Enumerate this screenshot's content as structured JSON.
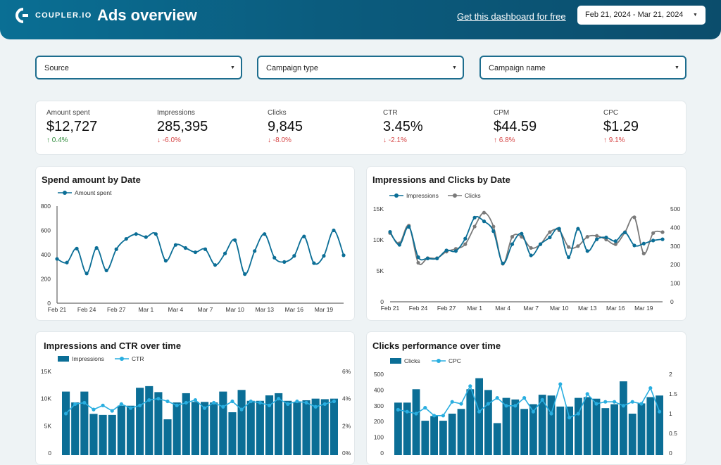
{
  "header": {
    "logo_text": "COUPLER.IO",
    "title": "Ads overview",
    "link_text": "Get this dashboard for free",
    "date_range": "Feb 21, 2024 - Mar 21, 2024"
  },
  "filters": [
    {
      "label": "Source"
    },
    {
      "label": "Campaign type"
    },
    {
      "label": "Campaign name"
    }
  ],
  "kpis": [
    {
      "label": "Amount spent",
      "value": "$12,727",
      "delta": "0.4%",
      "direction": "up",
      "color": "#2e8b3a"
    },
    {
      "label": "Impressions",
      "value": "285,395",
      "delta": "-6.0%",
      "direction": "down",
      "color": "#d64545"
    },
    {
      "label": "Clicks",
      "value": "9,845",
      "delta": "-8.0%",
      "direction": "down",
      "color": "#d64545"
    },
    {
      "label": "CTR",
      "value": "3.45%",
      "delta": "-2.1%",
      "direction": "down",
      "color": "#d64545"
    },
    {
      "label": "CPM",
      "value": "$44.59",
      "delta": "6.8%",
      "direction": "up",
      "color": "#d64545"
    },
    {
      "label": "CPC",
      "value": "$1.29",
      "delta": "9.1%",
      "direction": "up",
      "color": "#d64545"
    }
  ],
  "colors": {
    "primary": "#0b6e96",
    "secondary": "#7a7a7a",
    "light": "#29aee0"
  },
  "chart_data": [
    {
      "id": "spend",
      "type": "line",
      "title": "Spend amount by Date",
      "legend": [
        "Amount spent"
      ],
      "xticks": [
        "Feb 21",
        "Feb 24",
        "Feb 27",
        "Mar 1",
        "Mar 4",
        "Mar 7",
        "Mar 10",
        "Mar 13",
        "Mar 16",
        "Mar 19"
      ],
      "yticks": [
        "0",
        "200",
        "400",
        "600",
        "800"
      ],
      "ylim": [
        0,
        800
      ],
      "values": [
        365,
        335,
        450,
        245,
        455,
        270,
        445,
        530,
        570,
        545,
        570,
        350,
        480,
        455,
        420,
        445,
        315,
        410,
        520,
        240,
        430,
        570,
        375,
        340,
        390,
        550,
        330,
        390,
        600,
        395
      ]
    },
    {
      "id": "impclicks",
      "type": "line",
      "title": "Impressions and Clicks by Date",
      "legend": [
        "Impressions",
        "Clicks"
      ],
      "xticks": [
        "Feb 21",
        "Feb 24",
        "Feb 27",
        "Mar 1",
        "Mar 4",
        "Mar 7",
        "Mar 10",
        "Mar 13",
        "Mar 16",
        "Mar 19"
      ],
      "yticks_left": [
        "0",
        "5K",
        "10K",
        "15K"
      ],
      "yticks_right": [
        "0",
        "100",
        "200",
        "300",
        "400",
        "500"
      ],
      "ylim_left": [
        0,
        15000
      ],
      "ylim_right": [
        0,
        500
      ],
      "series": [
        {
          "name": "Impressions",
          "axis": "left",
          "values": [
            11300,
            9200,
            12100,
            7200,
            7000,
            7000,
            8300,
            8200,
            10200,
            13600,
            13000,
            11400,
            6200,
            9300,
            11000,
            7500,
            9300,
            10400,
            11800,
            7200,
            11800,
            8200,
            10100,
            10400,
            9800,
            11200,
            9100,
            9400,
            9900,
            10100
          ]
        },
        {
          "name": "Clicks",
          "axis": "right",
          "values": [
            370,
            315,
            410,
            210,
            235,
            235,
            270,
            285,
            310,
            405,
            480,
            405,
            205,
            350,
            350,
            290,
            310,
            375,
            385,
            295,
            300,
            350,
            355,
            335,
            310,
            375,
            455,
            260,
            370,
            375
          ]
        }
      ]
    },
    {
      "id": "impctr",
      "type": "bar",
      "title": "Impressions and CTR over time",
      "legend": [
        "Impressions",
        "CTR"
      ],
      "yticks_left": [
        "0",
        "5K",
        "10K",
        "15K"
      ],
      "yticks_right": [
        "0%",
        "2%",
        "4%",
        "6%"
      ],
      "ylim_left": [
        0,
        15000
      ],
      "ylim_right": [
        0,
        6
      ],
      "series": [
        {
          "name": "Impressions",
          "axis": "left",
          "values": [
            11300,
            9300,
            11300,
            7200,
            7000,
            7000,
            8700,
            8700,
            12000,
            12300,
            11200,
            6200,
            9300,
            11000,
            9400,
            9400,
            9300,
            11300,
            7500,
            11600,
            9600,
            9600,
            10600,
            11000,
            9600,
            9300,
            9700,
            10000,
            9900,
            10000
          ]
        },
        {
          "name": "CTR",
          "axis": "right",
          "values": [
            2.9,
            3.6,
            3.7,
            3.2,
            3.5,
            3.1,
            3.6,
            3.3,
            3.5,
            3.9,
            4.0,
            3.8,
            3.5,
            3.7,
            3.9,
            3.3,
            3.7,
            3.4,
            3.8,
            3.2,
            3.8,
            3.7,
            3.5,
            4.0,
            3.6,
            3.8,
            3.7,
            3.4,
            3.6,
            3.8
          ]
        }
      ]
    },
    {
      "id": "clickscpc",
      "type": "bar",
      "title": "Clicks performance over time",
      "legend": [
        "Clicks",
        "CPC"
      ],
      "yticks_left": [
        "0",
        "100",
        "200",
        "300",
        "400",
        "500"
      ],
      "yticks_right": [
        "0",
        "0.5",
        "1",
        "1.5",
        "2"
      ],
      "ylim_left": [
        0,
        500
      ],
      "ylim_right": [
        0,
        2
      ],
      "series": [
        {
          "name": "Clicks",
          "axis": "left",
          "values": [
            320,
            320,
            405,
            205,
            235,
            205,
            250,
            280,
            405,
            475,
            400,
            190,
            350,
            340,
            280,
            310,
            370,
            365,
            295,
            295,
            350,
            355,
            345,
            285,
            310,
            455,
            250,
            315,
            355,
            365
          ]
        },
        {
          "name": "CPC",
          "axis": "right",
          "values": [
            1.1,
            1.05,
            1.0,
            1.15,
            0.95,
            0.95,
            1.3,
            1.25,
            1.7,
            1.05,
            1.25,
            1.4,
            1.2,
            1.2,
            1.4,
            1.05,
            1.35,
            1.0,
            1.75,
            0.9,
            1.0,
            1.5,
            1.25,
            1.3,
            1.3,
            1.2,
            1.3,
            1.25,
            1.65,
            1.05
          ]
        }
      ]
    }
  ]
}
